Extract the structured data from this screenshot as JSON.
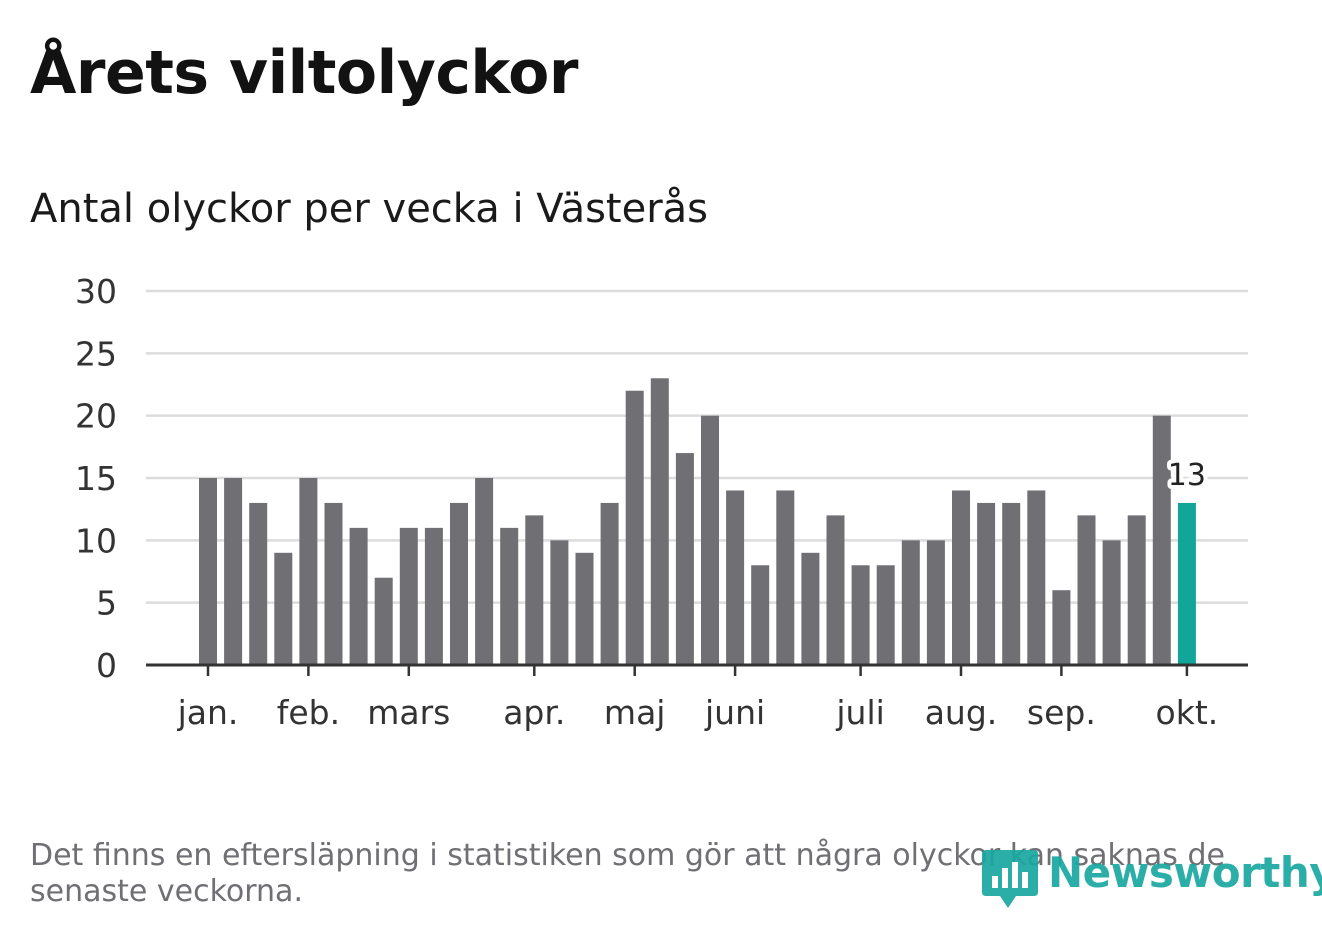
{
  "page": {
    "title": "Årets viltolyckor",
    "subtitle": "Antal olyckor per vecka i Västerås",
    "footnote": "Det finns en eftersläpning i statistiken som gör att några olyckor kan saknas de senaste veckorna.",
    "brand": "Newsworthy"
  },
  "colors": {
    "bar": "#6f6f74",
    "highlight": "#12a59a",
    "grid": "#dcdcdc",
    "axis": "#333333"
  },
  "chart_data": {
    "type": "bar",
    "title": "Antal olyckor per vecka i Västerås",
    "ylim": [
      0,
      30
    ],
    "yticks": [
      0,
      5,
      10,
      15,
      20,
      25,
      30
    ],
    "grid": true,
    "xticks": [
      {
        "label": "jan.",
        "week": 1
      },
      {
        "label": "feb.",
        "week": 5
      },
      {
        "label": "mars",
        "week": 9
      },
      {
        "label": "apr.",
        "week": 14
      },
      {
        "label": "maj",
        "week": 18
      },
      {
        "label": "juni",
        "week": 22
      },
      {
        "label": "juli",
        "week": 27
      },
      {
        "label": "aug.",
        "week": 31
      },
      {
        "label": "sep.",
        "week": 35
      },
      {
        "label": "okt.",
        "week": 40
      }
    ],
    "weeks": [
      1,
      2,
      3,
      4,
      5,
      6,
      7,
      8,
      9,
      10,
      11,
      12,
      13,
      14,
      15,
      16,
      17,
      18,
      19,
      20,
      21,
      22,
      23,
      24,
      25,
      26,
      27,
      28,
      29,
      30,
      31,
      32,
      33,
      34,
      35,
      36,
      37,
      38,
      39,
      40
    ],
    "values": [
      15,
      15,
      13,
      9,
      15,
      13,
      11,
      7,
      11,
      11,
      13,
      15,
      11,
      12,
      10,
      9,
      13,
      22,
      23,
      17,
      20,
      14,
      8,
      14,
      9,
      12,
      8,
      8,
      10,
      10,
      14,
      13,
      13,
      14,
      6,
      12,
      10,
      12,
      20,
      13
    ],
    "highlight_index": 39,
    "highlight_label": "13"
  }
}
